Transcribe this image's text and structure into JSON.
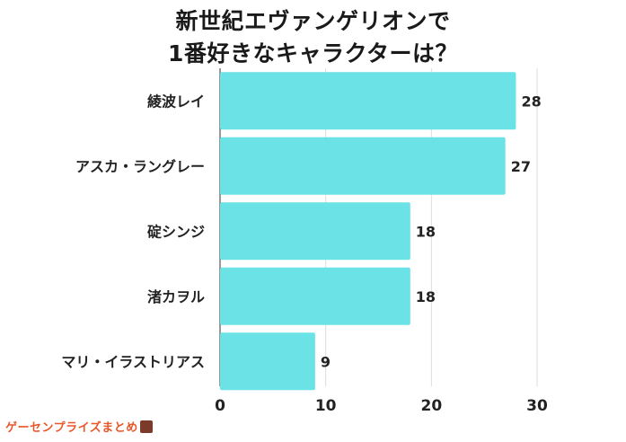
{
  "title": [
    "新世紀エヴァンゲリオンで",
    "1番好きなキャラクターは？"
  ],
  "watermark": "ゲーセンプライズまとめ",
  "chart_data": {
    "type": "bar",
    "orientation": "horizontal",
    "categories": [
      "綾波レイ",
      "アスカ・ラングレー",
      "碇シンジ",
      "渚カヲル",
      "マリ・イラストリアス"
    ],
    "values": [
      28,
      27,
      18,
      18,
      9
    ],
    "xlim": [
      0,
      30
    ],
    "xticks": [
      0,
      10,
      20,
      30
    ],
    "grid": true,
    "bar_color": "#6be3e6"
  }
}
